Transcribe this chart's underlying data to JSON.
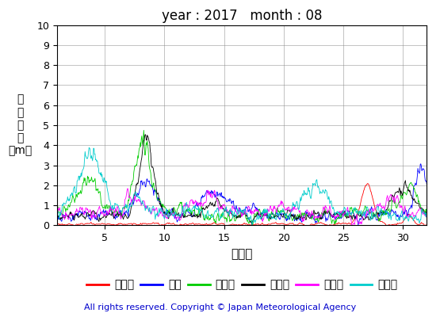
{
  "title": "year : 2017   month : 08",
  "xlabel": "（日）",
  "ylabel_chars": [
    "有",
    "義",
    "波",
    "高",
    "（m）"
  ],
  "ylim": [
    0,
    10
  ],
  "yticks": [
    0,
    1,
    2,
    3,
    4,
    5,
    6,
    7,
    8,
    9,
    10
  ],
  "xlim": [
    1,
    32
  ],
  "xticks": [
    5,
    10,
    15,
    20,
    25,
    30
  ],
  "copyright": "All rights reserved. Copyright © Japan Meteorological Agency",
  "legend": [
    {
      "label": "上ノ国",
      "color": "#ff0000"
    },
    {
      "label": "唐桑",
      "color": "#0000ff"
    },
    {
      "label": "石廠崎",
      "color": "#00cc00"
    },
    {
      "label": "経ヶ岸",
      "color": "#000000"
    },
    {
      "label": "生月島",
      "color": "#ff00ff"
    },
    {
      "label": "屋久島",
      "color": "#00cccc"
    }
  ],
  "bg_color": "#ffffff",
  "grid_color": "#888888",
  "title_fontsize": 12,
  "tick_fontsize": 9,
  "legend_fontsize": 10,
  "copyright_fontsize": 8,
  "lw": 0.6
}
